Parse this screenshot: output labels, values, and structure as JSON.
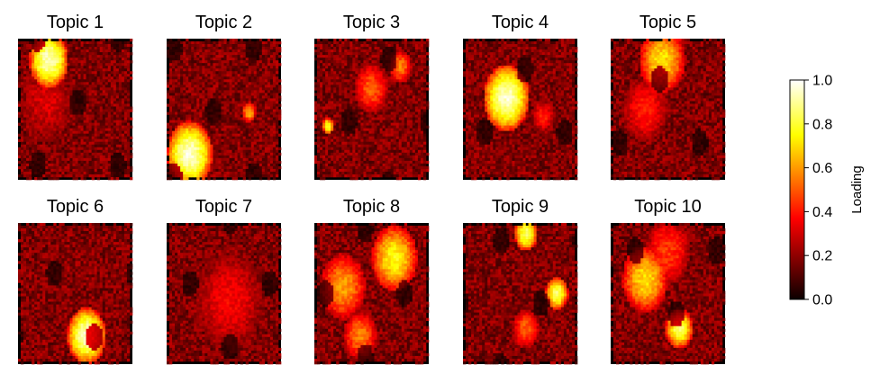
{
  "chart_data": {
    "type": "heatmap",
    "colormap": "hot",
    "panels": [
      {
        "title": "Topic 1",
        "hotspots": [
          {
            "cx": 0.27,
            "cy": 0.15,
            "r": 0.17,
            "v": 0.95
          },
          {
            "cx": 0.25,
            "cy": 0.45,
            "r": 0.25,
            "v": 0.3
          }
        ]
      },
      {
        "title": "Topic 2",
        "hotspots": [
          {
            "cx": 0.2,
            "cy": 0.82,
            "r": 0.2,
            "v": 0.95
          },
          {
            "cx": 0.72,
            "cy": 0.52,
            "r": 0.06,
            "v": 0.65
          }
        ]
      },
      {
        "title": "Topic 3",
        "hotspots": [
          {
            "cx": 0.5,
            "cy": 0.35,
            "r": 0.15,
            "v": 0.5
          },
          {
            "cx": 0.12,
            "cy": 0.62,
            "r": 0.05,
            "v": 0.8
          },
          {
            "cx": 0.75,
            "cy": 0.2,
            "r": 0.1,
            "v": 0.55
          }
        ]
      },
      {
        "title": "Topic 4",
        "hotspots": [
          {
            "cx": 0.38,
            "cy": 0.42,
            "r": 0.2,
            "v": 0.95
          },
          {
            "cx": 0.7,
            "cy": 0.55,
            "r": 0.1,
            "v": 0.4
          }
        ]
      },
      {
        "title": "Topic 5",
        "hotspots": [
          {
            "cx": 0.45,
            "cy": 0.15,
            "r": 0.2,
            "v": 0.7
          },
          {
            "cx": 0.3,
            "cy": 0.5,
            "r": 0.2,
            "v": 0.4
          }
        ]
      },
      {
        "title": "Topic 6",
        "hotspots": [
          {
            "cx": 0.6,
            "cy": 0.8,
            "r": 0.17,
            "v": 0.95
          }
        ]
      },
      {
        "title": "Topic 7",
        "hotspots": [
          {
            "cx": 0.55,
            "cy": 0.55,
            "r": 0.3,
            "v": 0.35
          }
        ]
      },
      {
        "title": "Topic 8",
        "hotspots": [
          {
            "cx": 0.7,
            "cy": 0.25,
            "r": 0.2,
            "v": 0.75
          },
          {
            "cx": 0.25,
            "cy": 0.45,
            "r": 0.2,
            "v": 0.6
          },
          {
            "cx": 0.4,
            "cy": 0.8,
            "r": 0.15,
            "v": 0.55
          }
        ]
      },
      {
        "title": "Topic 9",
        "hotspots": [
          {
            "cx": 0.55,
            "cy": 0.08,
            "r": 0.1,
            "v": 0.85
          },
          {
            "cx": 0.82,
            "cy": 0.5,
            "r": 0.1,
            "v": 0.85
          },
          {
            "cx": 0.55,
            "cy": 0.75,
            "r": 0.12,
            "v": 0.5
          }
        ]
      },
      {
        "title": "Topic 10",
        "hotspots": [
          {
            "cx": 0.3,
            "cy": 0.4,
            "r": 0.2,
            "v": 0.7
          },
          {
            "cx": 0.6,
            "cy": 0.75,
            "r": 0.12,
            "v": 0.85
          },
          {
            "cx": 0.5,
            "cy": 0.2,
            "r": 0.2,
            "v": 0.45
          }
        ]
      }
    ],
    "colorbar": {
      "label": "Loading",
      "range": [
        0.0,
        1.0
      ],
      "ticks": [
        "0.0",
        "0.2",
        "0.4",
        "0.6",
        "0.8",
        "1.0"
      ]
    }
  }
}
